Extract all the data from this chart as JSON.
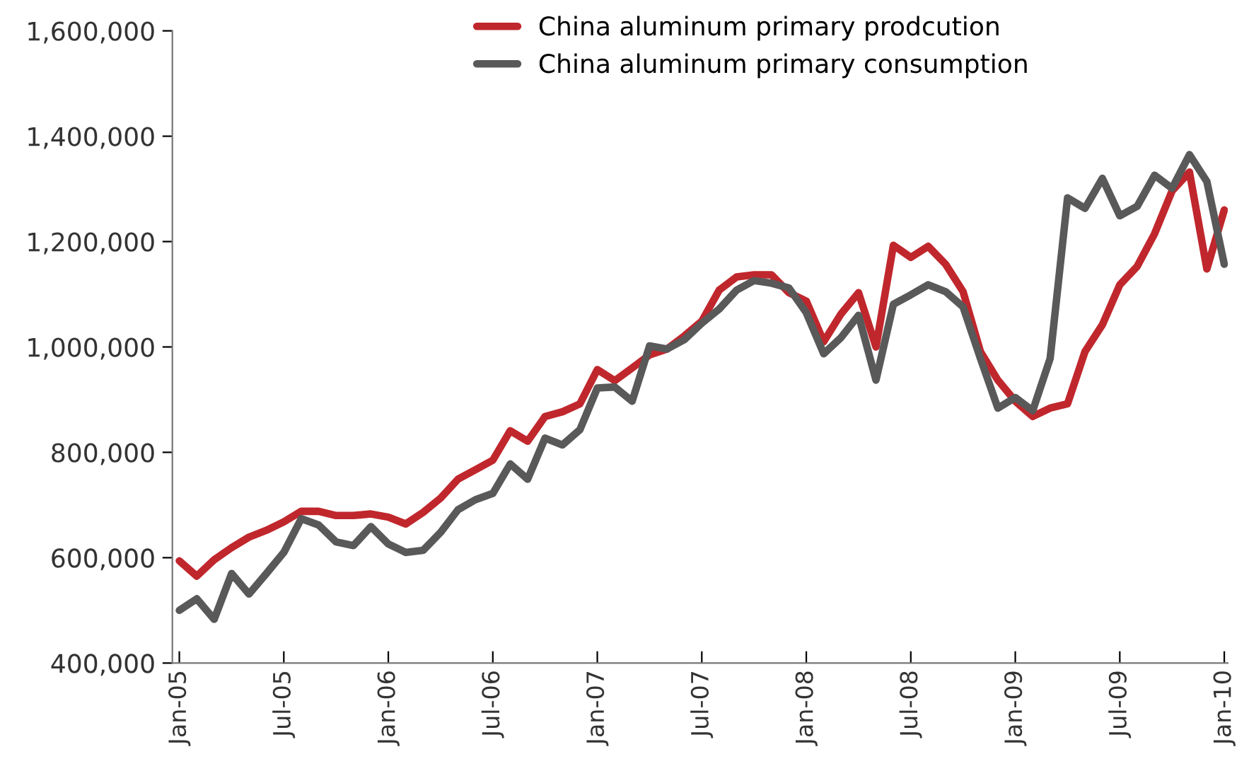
{
  "chart_data": {
    "type": "line",
    "categories": [
      "Jan-05",
      null,
      null,
      null,
      null,
      null,
      "Jul-05",
      null,
      null,
      null,
      null,
      null,
      "Jan-06",
      null,
      null,
      null,
      null,
      null,
      "Jul-06",
      null,
      null,
      null,
      null,
      null,
      "Jan-07",
      null,
      null,
      null,
      null,
      null,
      "Jul-07",
      null,
      null,
      null,
      null,
      null,
      "Jan-08",
      null,
      null,
      null,
      null,
      null,
      "Jul-08",
      null,
      null,
      null,
      null,
      null,
      "Jan-09",
      null,
      null,
      null,
      null,
      null,
      "Jul-09",
      null,
      null,
      null,
      null,
      null,
      "Jan-10"
    ],
    "series": [
      {
        "name": "China aluminum primary prodcution",
        "color": "#c0272d",
        "values": [
          594000,
          565000,
          596000,
          619000,
          639000,
          652000,
          668000,
          688000,
          688000,
          680000,
          680000,
          683000,
          677000,
          664000,
          686000,
          713000,
          749000,
          767000,
          785000,
          841000,
          821000,
          868000,
          877000,
          892000,
          957000,
          936000,
          960000,
          985000,
          996000,
          1021000,
          1049000,
          1108000,
          1133000,
          1137000,
          1137000,
          1103000,
          1087000,
          1010000,
          1063000,
          1103000,
          1000000,
          1193000,
          1170000,
          1191000,
          1157000,
          1105000,
          991000,
          937000,
          897000,
          868000,
          884000,
          892000,
          991000,
          1042000,
          1118000,
          1153000,
          1215000,
          1296000,
          1332000,
          1148000,
          1260000
        ]
      },
      {
        "name": "China aluminum primary consumption",
        "color": "#595959",
        "values": [
          500000,
          522000,
          483000,
          570000,
          531000,
          570000,
          610000,
          674000,
          662000,
          630000,
          623000,
          659000,
          626000,
          610000,
          614000,
          648000,
          691000,
          710000,
          722000,
          778000,
          749000,
          827000,
          814000,
          843000,
          922000,
          924000,
          897000,
          1002000,
          996000,
          1014000,
          1045000,
          1072000,
          1108000,
          1126000,
          1121000,
          1112000,
          1065000,
          987000,
          1018000,
          1060000,
          937000,
          1081000,
          1099000,
          1118000,
          1105000,
          1076000,
          978000,
          884000,
          904000,
          879000,
          978000,
          1283000,
          1263000,
          1320000,
          1249000,
          1267000,
          1326000,
          1301000,
          1365000,
          1314000,
          1157000
        ]
      }
    ],
    "ylim": [
      400000,
      1600000
    ],
    "yticks": [
      {
        "value": 400000,
        "label": "400,000"
      },
      {
        "value": 600000,
        "label": "600,000"
      },
      {
        "value": 800000,
        "label": "800,000"
      },
      {
        "value": 1000000,
        "label": "1,000,000"
      },
      {
        "value": 1200000,
        "label": "1,200,000"
      },
      {
        "value": 1400000,
        "label": "1,400,000"
      },
      {
        "value": 1600000,
        "label": "1,600,000"
      }
    ],
    "legend": "top",
    "grid": false,
    "marker": "none",
    "line_style": "solid"
  }
}
